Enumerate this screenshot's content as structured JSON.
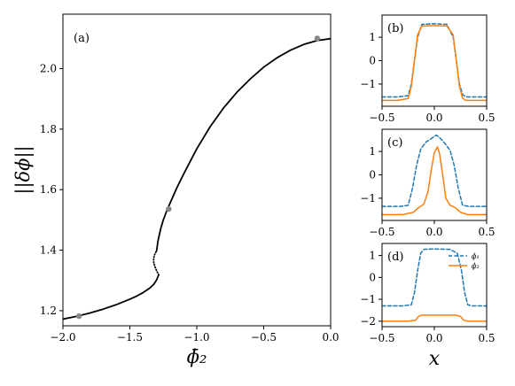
{
  "chart_data": [
    {
      "type": "line",
      "panel_label": "(a)",
      "xlabel": "ϕ̄₂",
      "ylabel": "||δϕ||",
      "xlim": [
        -2.0,
        0.0
      ],
      "ylim": [
        1.15,
        2.18
      ],
      "xticks": [
        -2.0,
        -1.5,
        -1.0,
        -0.5,
        0.0
      ],
      "xtick_labels": [
        "−2.0",
        "−1.5",
        "−1.0",
        "−0.5",
        "0.0"
      ],
      "yticks": [
        1.2,
        1.4,
        1.6,
        1.8,
        2.0
      ],
      "ytick_labels": [
        "1.2",
        "1.4",
        "1.6",
        "1.8",
        "2.0"
      ],
      "series": [
        {
          "style": "solid",
          "color": "#000000",
          "x": [
            -2.0,
            -1.9,
            -1.8,
            -1.7,
            -1.6,
            -1.5,
            -1.45,
            -1.4,
            -1.35,
            -1.32,
            -1.3,
            -1.285
          ],
          "y": [
            1.172,
            1.181,
            1.192,
            1.205,
            1.22,
            1.238,
            1.248,
            1.26,
            1.275,
            1.288,
            1.302,
            1.318
          ]
        },
        {
          "style": "dotted",
          "color": "#000000",
          "x": [
            -1.285,
            -1.3,
            -1.315,
            -1.322,
            -1.322,
            -1.318,
            -1.31,
            -1.3
          ],
          "y": [
            1.318,
            1.332,
            1.348,
            1.36,
            1.372,
            1.382,
            1.39,
            1.398
          ]
        },
        {
          "style": "solid",
          "color": "#000000",
          "x": [
            -1.3,
            -1.29,
            -1.27,
            -1.25,
            -1.22,
            -1.2,
            -1.15,
            -1.1,
            -1.0,
            -0.9,
            -0.8,
            -0.7,
            -0.6,
            -0.5,
            -0.4,
            -0.3,
            -0.2,
            -0.1,
            0.0
          ],
          "y": [
            1.398,
            1.43,
            1.47,
            1.5,
            1.535,
            1.555,
            1.605,
            1.65,
            1.735,
            1.808,
            1.87,
            1.922,
            1.966,
            2.005,
            2.036,
            2.061,
            2.08,
            2.093,
            2.099
          ]
        }
      ],
      "markers": {
        "color": "#888888",
        "x": [
          -1.88,
          -1.21,
          -0.1
        ],
        "y": [
          1.182,
          1.536,
          2.1
        ]
      }
    },
    {
      "type": "line",
      "panel_label": "(b)",
      "xlim": [
        -0.5,
        0.5
      ],
      "ylim": [
        -1.95,
        1.95
      ],
      "xticks": [
        -0.5,
        0.0,
        0.5
      ],
      "xtick_labels": [
        "−0.5",
        "0.0",
        "0.5"
      ],
      "yticks": [
        -1,
        0,
        1
      ],
      "ytick_labels": [
        "−1",
        "0",
        "1"
      ],
      "show_xtick_labels": true,
      "series": [
        {
          "name": "",
          "style": "dashed",
          "color": "#1f77b4",
          "x": [
            -0.5,
            -0.35,
            -0.25,
            -0.22,
            -0.19,
            -0.16,
            -0.12,
            0.0,
            0.12,
            0.18,
            0.21,
            0.24,
            0.27,
            0.3,
            0.35,
            0.5
          ],
          "y": [
            -1.55,
            -1.55,
            -1.5,
            -1.0,
            0.0,
            1.0,
            1.55,
            1.58,
            1.55,
            1.0,
            0.0,
            -1.0,
            -1.45,
            -1.55,
            -1.55,
            -1.55
          ]
        },
        {
          "name": "",
          "style": "solid",
          "color": "#ff7f0e",
          "x": [
            -0.5,
            -0.35,
            -0.25,
            -0.22,
            -0.19,
            -0.16,
            -0.12,
            0.0,
            0.12,
            0.18,
            0.21,
            0.24,
            0.27,
            0.3,
            0.35,
            0.5
          ],
          "y": [
            -1.7,
            -1.7,
            -1.62,
            -1.1,
            0.0,
            1.1,
            1.48,
            1.5,
            1.48,
            1.1,
            0.0,
            -1.1,
            -1.6,
            -1.7,
            -1.7,
            -1.7
          ]
        }
      ]
    },
    {
      "type": "line",
      "panel_label": "(c)",
      "xlim": [
        -0.5,
        0.5
      ],
      "ylim": [
        -1.95,
        1.95
      ],
      "xticks": [
        -0.5,
        0.0,
        0.5
      ],
      "xtick_labels": [
        "−0.5",
        "0.0",
        "0.5"
      ],
      "yticks": [
        -1,
        0,
        1
      ],
      "ytick_labels": [
        "−1",
        "0",
        "1"
      ],
      "show_xtick_labels": true,
      "series": [
        {
          "name": "",
          "style": "dashed",
          "color": "#1f77b4",
          "x": [
            -0.5,
            -0.32,
            -0.25,
            -0.21,
            -0.17,
            -0.13,
            -0.08,
            -0.03,
            0.02,
            0.06,
            0.1,
            0.15,
            0.19,
            0.23,
            0.27,
            0.33,
            0.5
          ],
          "y": [
            -1.35,
            -1.35,
            -1.3,
            -0.6,
            0.4,
            1.1,
            1.4,
            1.55,
            1.7,
            1.55,
            1.35,
            1.05,
            0.4,
            -0.6,
            -1.3,
            -1.35,
            -1.35
          ]
        },
        {
          "name": "",
          "style": "solid",
          "color": "#ff7f0e",
          "x": [
            -0.5,
            -0.3,
            -0.2,
            -0.15,
            -0.1,
            -0.06,
            -0.03,
            0.0,
            0.03,
            0.05,
            0.08,
            0.11,
            0.15,
            0.2,
            0.25,
            0.32,
            0.5
          ],
          "y": [
            -1.7,
            -1.7,
            -1.6,
            -1.4,
            -1.25,
            -0.7,
            0.2,
            0.95,
            1.2,
            0.9,
            0.0,
            -1.0,
            -1.3,
            -1.4,
            -1.6,
            -1.7,
            -1.7
          ]
        }
      ]
    },
    {
      "type": "line",
      "panel_label": "(d)",
      "xlim": [
        -0.5,
        0.5
      ],
      "ylim": [
        -2.25,
        1.55
      ],
      "xticks": [
        -0.5,
        0.0,
        0.5
      ],
      "xtick_labels": [
        "−0.5",
        "0.0",
        "0.5"
      ],
      "yticks": [
        -2,
        -1,
        0,
        1
      ],
      "ytick_labels": [
        "−2",
        "−1",
        "0",
        "1"
      ],
      "show_xtick_labels": true,
      "xlabel": "x",
      "legend_location": "top-right",
      "series": [
        {
          "name": "ϕ₁",
          "style": "dashed",
          "color": "#1f77b4",
          "x": [
            -0.5,
            -0.3,
            -0.22,
            -0.19,
            -0.16,
            -0.13,
            -0.1,
            0.0,
            0.15,
            0.22,
            0.26,
            0.29,
            0.32,
            0.36,
            0.5
          ],
          "y": [
            -1.3,
            -1.3,
            -1.25,
            -0.7,
            0.3,
            1.1,
            1.28,
            1.3,
            1.28,
            1.1,
            0.3,
            -0.7,
            -1.25,
            -1.3,
            -1.3
          ]
        },
        {
          "name": "ϕ₂",
          "style": "solid",
          "color": "#ff7f0e",
          "x": [
            -0.5,
            -0.25,
            -0.18,
            -0.15,
            -0.12,
            0.0,
            0.2,
            0.25,
            0.28,
            0.32,
            0.5
          ],
          "y": [
            -2.0,
            -2.0,
            -1.95,
            -1.78,
            -1.72,
            -1.72,
            -1.72,
            -1.78,
            -1.95,
            -2.0,
            -2.0
          ]
        }
      ]
    }
  ]
}
